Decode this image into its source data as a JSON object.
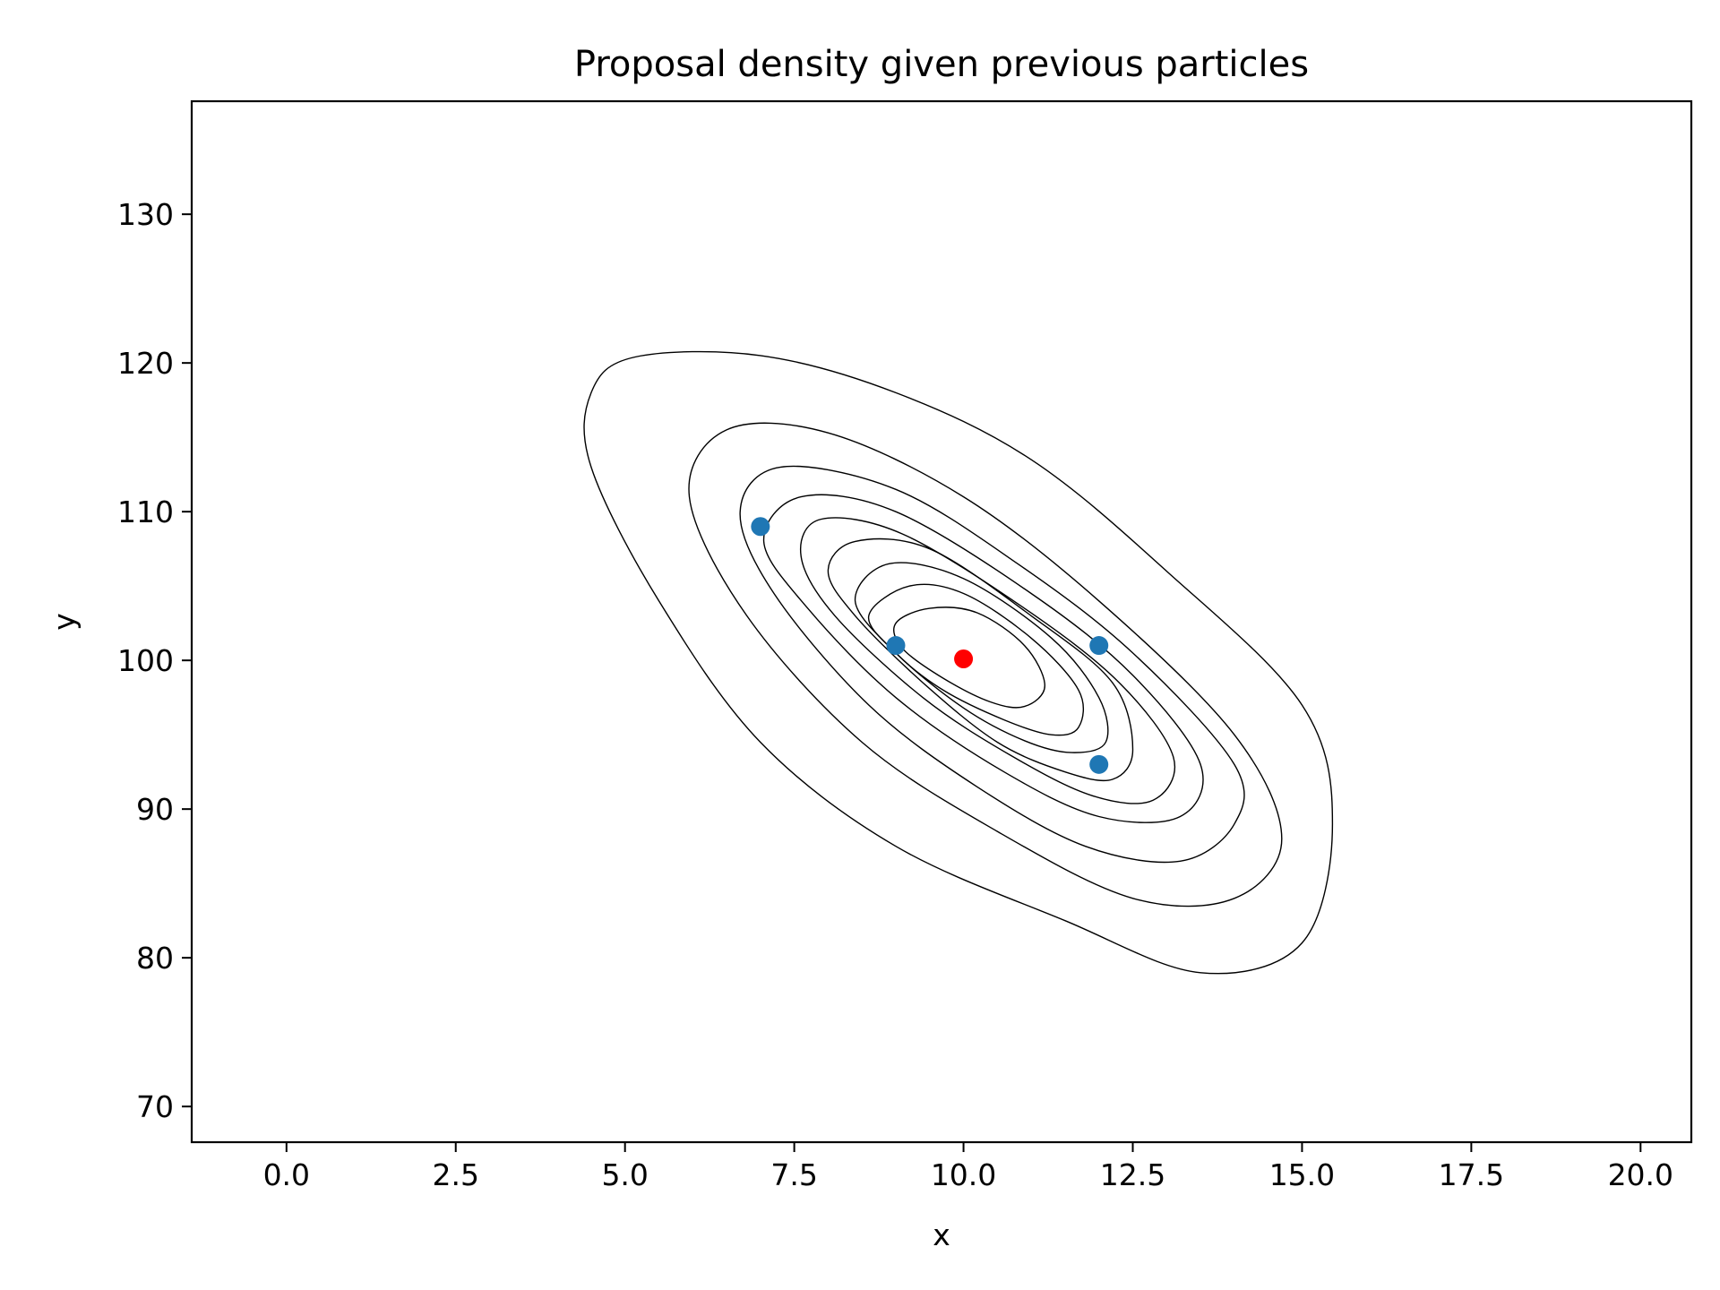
{
  "chart_data": {
    "type": "scatter",
    "title": "Proposal density given previous particles",
    "xlabel": "x",
    "ylabel": "y",
    "xlim": [
      -1.4,
      20.75
    ],
    "ylim": [
      67.6,
      137.6
    ],
    "xticks": [
      0.0,
      2.5,
      5.0,
      7.5,
      10.0,
      12.5,
      15.0,
      17.5,
      20.0
    ],
    "xtick_labels": [
      "0.0",
      "2.5",
      "5.0",
      "7.5",
      "10.0",
      "12.5",
      "15.0",
      "17.5",
      "20.0"
    ],
    "yticks": [
      70,
      80,
      90,
      100,
      110,
      120,
      130
    ],
    "ytick_labels": [
      "70",
      "80",
      "90",
      "100",
      "110",
      "120",
      "130"
    ],
    "grid": false,
    "legend": "none",
    "series": [
      {
        "color": "#1f77b4",
        "points": [
          [
            7,
            109
          ],
          [
            9,
            101
          ],
          [
            12,
            101
          ],
          [
            12,
            93
          ]
        ]
      },
      {
        "color": "#ff0000",
        "points": [
          [
            10,
            100.1
          ]
        ]
      }
    ],
    "contours": {
      "color": "#000000",
      "levels": 9,
      "paths": [
        [
          [
            5.15,
            120.4
          ],
          [
            7.0,
            120.5
          ],
          [
            9.0,
            118.0
          ],
          [
            11.0,
            113.5
          ],
          [
            13.0,
            106.0
          ],
          [
            15.0,
            97.0
          ],
          [
            15.45,
            89.0
          ],
          [
            15.0,
            81.0
          ],
          [
            13.5,
            79.0
          ],
          [
            11.5,
            82.5
          ],
          [
            9.0,
            87.5
          ],
          [
            7.0,
            94.5
          ],
          [
            5.5,
            104.0
          ],
          [
            4.5,
            113.0
          ],
          [
            4.5,
            118.0
          ]
        ],
        [
          [
            6.5,
            115.5
          ],
          [
            8.0,
            115.3
          ],
          [
            10.0,
            111.0
          ],
          [
            12.0,
            104.0
          ],
          [
            14.0,
            95.0
          ],
          [
            14.7,
            88.0
          ],
          [
            14.0,
            84.0
          ],
          [
            12.5,
            84.0
          ],
          [
            10.5,
            88.5
          ],
          [
            8.5,
            94.5
          ],
          [
            6.8,
            103.0
          ],
          [
            5.95,
            111.0
          ]
        ],
        [
          [
            7.3,
            113.0
          ],
          [
            9.0,
            111.5
          ],
          [
            10.8,
            106.5
          ],
          [
            12.5,
            100.5
          ],
          [
            14.0,
            93.0
          ],
          [
            14.0,
            89.0
          ],
          [
            13.2,
            86.5
          ],
          [
            11.8,
            87.5
          ],
          [
            10.2,
            91.5
          ],
          [
            8.6,
            97.0
          ],
          [
            7.2,
            104.5
          ],
          [
            6.7,
            110.0
          ]
        ],
        [
          [
            7.6,
            111.0
          ],
          [
            9.0,
            110.0
          ],
          [
            11.0,
            104.5
          ],
          [
            12.5,
            99.0
          ],
          [
            13.5,
            93.0
          ],
          [
            13.2,
            89.5
          ],
          [
            12.0,
            89.5
          ],
          [
            10.6,
            92.5
          ],
          [
            9.0,
            97.5
          ],
          [
            7.7,
            103.5
          ],
          [
            7.05,
            108.0
          ]
        ],
        [
          [
            7.9,
            109.5
          ],
          [
            9.1,
            108.5
          ],
          [
            10.9,
            103.5
          ],
          [
            12.3,
            98.5
          ],
          [
            13.1,
            93.5
          ],
          [
            12.8,
            90.6
          ],
          [
            11.9,
            90.9
          ],
          [
            10.7,
            93.6
          ],
          [
            9.4,
            97.5
          ],
          [
            8.1,
            103.0
          ],
          [
            7.6,
            107.0
          ]
        ],
        [
          [
            8.4,
            108.0
          ],
          [
            9.5,
            107.5
          ],
          [
            11.0,
            103.0
          ],
          [
            12.2,
            98.5
          ],
          [
            12.5,
            94.0
          ],
          [
            12.2,
            92.0
          ],
          [
            11.5,
            92.5
          ],
          [
            10.5,
            94.5
          ],
          [
            9.4,
            98.5
          ],
          [
            8.4,
            103.0
          ],
          [
            8.0,
            106.0
          ]
        ],
        [
          [
            8.9,
            106.5
          ],
          [
            10.0,
            105.5
          ],
          [
            11.3,
            101.5
          ],
          [
            12.0,
            97.5
          ],
          [
            12.1,
            94.5
          ],
          [
            11.6,
            93.8
          ],
          [
            10.9,
            94.6
          ],
          [
            10.0,
            96.8
          ],
          [
            9.0,
            100.5
          ],
          [
            8.4,
            104.0
          ]
        ],
        [
          [
            9.2,
            105.0
          ],
          [
            10.0,
            104.5
          ],
          [
            11.0,
            101.5
          ],
          [
            11.7,
            98.0
          ],
          [
            11.7,
            95.5
          ],
          [
            11.3,
            95.0
          ],
          [
            10.6,
            96.0
          ],
          [
            9.7,
            98.0
          ],
          [
            9.0,
            100.5
          ],
          [
            8.6,
            103.0
          ]
        ],
        [
          [
            9.5,
            103.5
          ],
          [
            10.2,
            103.2
          ],
          [
            10.9,
            101.0
          ],
          [
            11.2,
            98.3
          ],
          [
            10.9,
            96.9
          ],
          [
            10.4,
            97.2
          ],
          [
            9.7,
            98.8
          ],
          [
            9.1,
            100.8
          ],
          [
            9.0,
            102.5
          ]
        ]
      ]
    }
  }
}
